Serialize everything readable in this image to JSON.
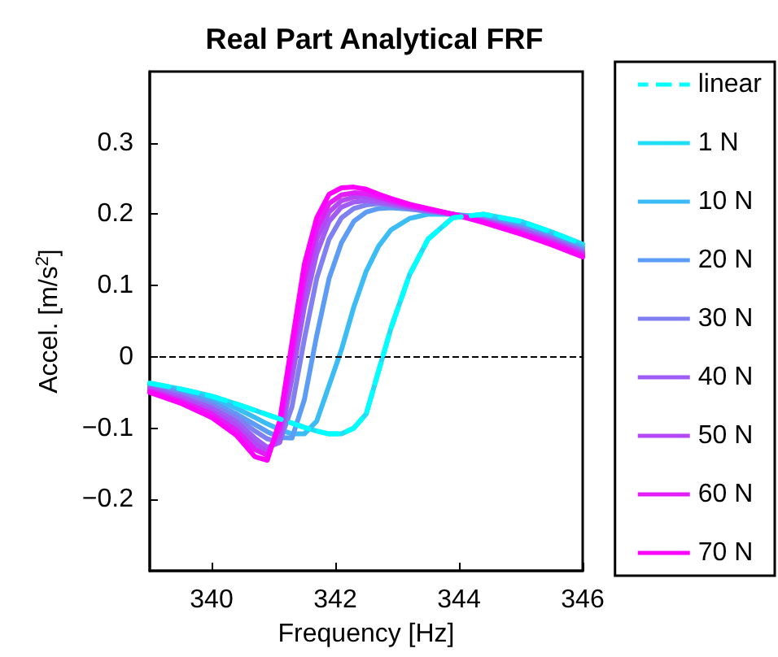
{
  "chart_data": {
    "type": "line",
    "title": "Real Part Analytical FRF",
    "xlabel": "Frequency [Hz]",
    "ylabel": "Accel. [m/s$^{2}$]",
    "x": [
      339,
      339.5,
      340,
      340.4,
      340.7,
      340.9,
      341.1,
      341.3,
      341.5,
      341.7,
      341.9,
      342.1,
      342.3,
      342.5,
      342.7,
      342.9,
      343.2,
      343.5,
      343.9,
      344.4,
      345,
      345.5,
      346
    ],
    "series": [
      {
        "name": "linear",
        "color": "#00ffff",
        "line_style": "dashed",
        "values": [
          -0.037,
          -0.045,
          -0.055,
          -0.066,
          -0.075,
          -0.081,
          -0.087,
          -0.093,
          -0.099,
          -0.104,
          -0.108,
          -0.108,
          -0.1,
          -0.08,
          -0.02,
          0.04,
          0.115,
          0.165,
          0.195,
          0.2,
          0.19,
          0.175,
          0.158
        ]
      },
      {
        "name": "1 N",
        "color": "#20dcf5",
        "values": [
          -0.037,
          -0.045,
          -0.055,
          -0.066,
          -0.075,
          -0.081,
          -0.087,
          -0.093,
          -0.099,
          -0.104,
          -0.108,
          -0.108,
          -0.1,
          -0.08,
          -0.02,
          0.04,
          0.115,
          0.165,
          0.195,
          0.2,
          0.19,
          0.175,
          0.158
        ]
      },
      {
        "name": "10 N",
        "color": "#3cbcf5",
        "values": [
          -0.038,
          -0.047,
          -0.059,
          -0.072,
          -0.085,
          -0.094,
          -0.102,
          -0.108,
          -0.108,
          -0.09,
          -0.04,
          0.01,
          0.07,
          0.12,
          0.155,
          0.178,
          0.194,
          0.2,
          0.2,
          0.196,
          0.186,
          0.171,
          0.154
        ]
      },
      {
        "name": "20 N",
        "color": "#5c9cf5",
        "values": [
          -0.04,
          -0.05,
          -0.064,
          -0.08,
          -0.095,
          -0.105,
          -0.113,
          -0.114,
          -0.06,
          0.03,
          0.11,
          0.16,
          0.19,
          0.203,
          0.208,
          0.209,
          0.207,
          0.204,
          0.2,
          0.193,
          0.182,
          0.168,
          0.151
        ]
      },
      {
        "name": "30 N",
        "color": "#8080f0",
        "values": [
          -0.042,
          -0.053,
          -0.068,
          -0.085,
          -0.104,
          -0.115,
          -0.12,
          -0.07,
          0.025,
          0.11,
          0.165,
          0.195,
          0.208,
          0.213,
          0.215,
          0.212,
          0.208,
          0.204,
          0.2,
          0.192,
          0.18,
          0.166,
          0.149
        ]
      },
      {
        "name": "40 N",
        "color": "#a05cf5",
        "values": [
          -0.044,
          -0.056,
          -0.072,
          -0.091,
          -0.114,
          -0.127,
          -0.12,
          -0.03,
          0.07,
          0.145,
          0.19,
          0.21,
          0.217,
          0.219,
          0.217,
          0.214,
          0.209,
          0.205,
          0.2,
          0.191,
          0.178,
          0.164,
          0.147
        ]
      },
      {
        "name": "50 N",
        "color": "#b448f5",
        "values": [
          -0.046,
          -0.059,
          -0.076,
          -0.097,
          -0.122,
          -0.133,
          -0.11,
          -0.01,
          0.09,
          0.165,
          0.203,
          0.219,
          0.224,
          0.225,
          0.221,
          0.217,
          0.211,
          0.206,
          0.2,
          0.19,
          0.176,
          0.162,
          0.145
        ]
      },
      {
        "name": "60 N",
        "color": "#e01ef5",
        "values": [
          -0.048,
          -0.062,
          -0.08,
          -0.103,
          -0.13,
          -0.138,
          -0.1,
          0.005,
          0.11,
          0.18,
          0.215,
          0.227,
          0.23,
          0.229,
          0.224,
          0.219,
          0.212,
          0.207,
          0.2,
          0.189,
          0.174,
          0.16,
          0.143
        ]
      },
      {
        "name": "70 N",
        "color": "#ff00ff",
        "values": [
          -0.05,
          -0.065,
          -0.085,
          -0.11,
          -0.14,
          -0.145,
          -0.09,
          0.02,
          0.13,
          0.195,
          0.228,
          0.237,
          0.238,
          0.235,
          0.228,
          0.222,
          0.214,
          0.208,
          0.2,
          0.188,
          0.172,
          0.157,
          0.14
        ]
      }
    ],
    "xlim": [
      339,
      346
    ],
    "xticks": [
      340,
      342,
      344,
      346
    ],
    "ylim": [
      -0.3,
      0.4
    ],
    "yticks": [
      -0.2,
      -0.1,
      0,
      0.1,
      0.2,
      0.3
    ],
    "ref_lines": [
      {
        "axis": "y",
        "value": 0,
        "color": "#000000",
        "line_style": "dashed"
      }
    ],
    "grid": false,
    "legend": "right",
    "marker": "none"
  }
}
